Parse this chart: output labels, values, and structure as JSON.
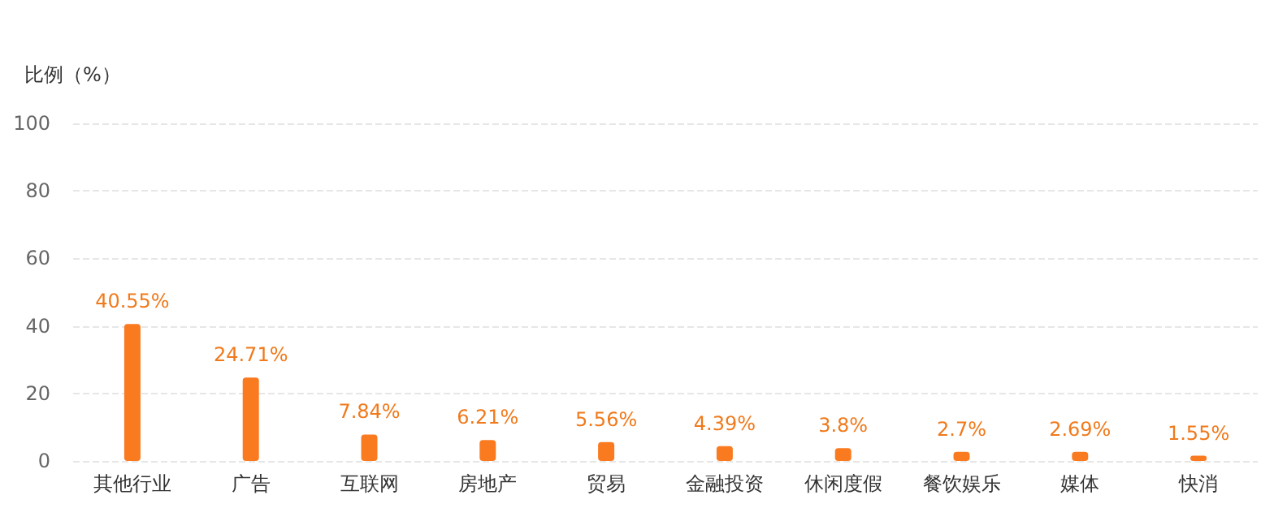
{
  "chart_data": {
    "type": "bar",
    "ylabel": "比例（%）",
    "categories": [
      "其他行业",
      "广告",
      "互联网",
      "房地产",
      "贸易",
      "金融投资",
      "休闲度假",
      "餐饮娱乐",
      "媒体",
      "快消"
    ],
    "values": [
      40.55,
      24.71,
      7.84,
      6.21,
      5.56,
      4.39,
      3.8,
      2.7,
      2.69,
      1.55
    ],
    "value_labels": [
      "40.55%",
      "24.71%",
      "7.84%",
      "6.21%",
      "5.56%",
      "4.39%",
      "3.8%",
      "2.7%",
      "2.69%",
      "1.55%"
    ],
    "color": "#fa7a20",
    "ylim": [
      0,
      100
    ],
    "yticks": [
      0,
      20,
      40,
      60,
      80,
      100
    ],
    "grid": "y"
  }
}
